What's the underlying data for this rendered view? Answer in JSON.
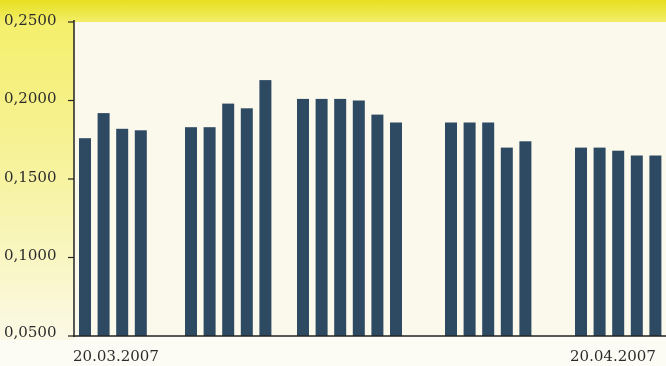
{
  "chart_data": {
    "type": "bar",
    "title": "",
    "xlabel": "",
    "ylabel": "",
    "ylim": [
      0.05,
      0.25
    ],
    "y_ticks": [
      "0,2500",
      "0,2000",
      "0,1500",
      "0,1000",
      "0,0500"
    ],
    "x_tick_labels": [
      "20.03.2007",
      "20.04.2007"
    ],
    "grid": false,
    "legend": "none",
    "colors": {
      "bar": "#2e4a62",
      "plot_background": "#fbf9ec",
      "top_band": "#ece531",
      "left_band": "#f1ea4a",
      "axis": "#222222"
    },
    "groups": [
      {
        "values": [
          0.176,
          0.192,
          0.182,
          0.181
        ]
      },
      {
        "values": [
          0.183,
          0.183,
          0.198,
          0.195,
          0.213
        ]
      },
      {
        "values": [
          0.201,
          0.201,
          0.201,
          0.2,
          0.191,
          0.186
        ]
      },
      {
        "values": [
          0.186,
          0.186,
          0.186,
          0.17,
          0.174
        ]
      },
      {
        "values": [
          0.17,
          0.17,
          0.168,
          0.165,
          0.165
        ]
      }
    ]
  }
}
